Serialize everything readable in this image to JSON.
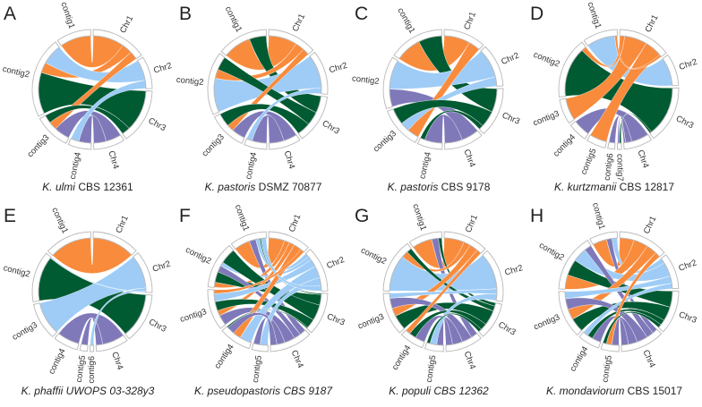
{
  "colors": {
    "Chr1": "#F98B3C",
    "Chr2": "#9ECCF6",
    "Chr3": "#005A32",
    "Chr4": "#7F79BA",
    "ring": "#B8B8B8"
  },
  "chromosomes": [
    "Chr1",
    "Chr2",
    "Chr3",
    "Chr4"
  ],
  "panels": [
    {
      "letter": "A",
      "caption_italic": "K. ulmi",
      "caption_plain": " CBS 12361",
      "contigs": [
        "contig1",
        "contig2",
        "contig3",
        "contig4"
      ],
      "links": [
        [
          1,
          1,
          3
        ],
        [
          2,
          3,
          4
        ],
        [
          2,
          1,
          1
        ],
        [
          2,
          2,
          2
        ],
        [
          3,
          4,
          1.5
        ],
        [
          3,
          1,
          0.8
        ],
        [
          3,
          3,
          0.8
        ],
        [
          4,
          4,
          1.2
        ],
        [
          4,
          2,
          0.8
        ]
      ]
    },
    {
      "letter": "B",
      "caption_italic": "K. pastoris",
      "caption_plain": " DSMZ 70877",
      "contigs": [
        "contig1",
        "contig2",
        "contig3",
        "contig4"
      ],
      "links": [
        [
          1,
          1,
          2.5
        ],
        [
          1,
          3,
          1.5
        ],
        [
          2,
          2,
          3
        ],
        [
          2,
          1,
          0.8
        ],
        [
          2,
          3,
          1.2
        ],
        [
          3,
          4,
          1.2
        ],
        [
          3,
          1,
          0.6
        ],
        [
          3,
          3,
          1.2
        ],
        [
          4,
          4,
          1.3
        ],
        [
          4,
          2,
          0.5
        ]
      ]
    },
    {
      "letter": "C",
      "caption_italic": "K. pastoris",
      "caption_plain": " CBS 9178",
      "contigs": [
        "contig1",
        "contig2",
        "contig3",
        "contig4"
      ],
      "links": [
        [
          1,
          1,
          2.2
        ],
        [
          1,
          3,
          2
        ],
        [
          2,
          4,
          1.5
        ],
        [
          2,
          2,
          2.5
        ],
        [
          3,
          1,
          1
        ],
        [
          3,
          2,
          0.8
        ],
        [
          3,
          3,
          1.4
        ],
        [
          4,
          4,
          1.5
        ],
        [
          4,
          3,
          0.4
        ]
      ]
    },
    {
      "letter": "D",
      "caption_italic": "K. kurtzmanii",
      "caption_plain": " CBS 12817",
      "contigs": [
        "contig1",
        "contig2",
        "contig3",
        "contig4",
        "contig5",
        "contig6",
        "contig7"
      ],
      "links": [
        [
          1,
          2,
          2.3
        ],
        [
          2,
          3,
          4
        ],
        [
          2,
          1,
          0.4
        ],
        [
          3,
          1,
          1.8
        ],
        [
          4,
          4,
          1.4
        ],
        [
          5,
          1,
          1.4
        ],
        [
          6,
          4,
          0.5
        ],
        [
          7,
          3,
          0.15
        ],
        [
          7,
          4,
          0.15
        ],
        [
          1,
          1,
          0.2
        ]
      ]
    },
    {
      "letter": "E",
      "caption_italic": "K. phaffii UWOPS 03-328y3",
      "caption_plain": "",
      "contigs": [
        "contig1",
        "contig2",
        "contig3",
        "contig4",
        "contig5",
        "contig6"
      ],
      "links": [
        [
          1,
          1,
          3.8
        ],
        [
          2,
          3,
          4
        ],
        [
          3,
          2,
          3
        ],
        [
          4,
          4,
          2
        ],
        [
          5,
          4,
          0.6
        ],
        [
          6,
          2,
          0.3
        ],
        [
          2,
          2,
          0.1
        ]
      ]
    },
    {
      "letter": "F",
      "caption_italic": "K. pseudopastoris CBS 9187",
      "caption_plain": "",
      "contigs": [
        "contig1",
        "contig2",
        "contig3",
        "contig4",
        "contig5"
      ],
      "links": [
        [
          1,
          1,
          1.2
        ],
        [
          1,
          4,
          0.5
        ],
        [
          1,
          2,
          0.3
        ],
        [
          1,
          3,
          0.1
        ],
        [
          2,
          1,
          0.4
        ],
        [
          2,
          3,
          0.8
        ],
        [
          2,
          4,
          0.5
        ],
        [
          2,
          2,
          0.3
        ],
        [
          2,
          3,
          1.2
        ],
        [
          3,
          4,
          0.8
        ],
        [
          3,
          1,
          0.4
        ],
        [
          3,
          3,
          0.7
        ],
        [
          3,
          2,
          0.6
        ],
        [
          4,
          2,
          0.9
        ],
        [
          4,
          1,
          0.6
        ],
        [
          4,
          4,
          0.6
        ],
        [
          4,
          3,
          0.1
        ],
        [
          5,
          2,
          0.6
        ],
        [
          5,
          4,
          0.5
        ],
        [
          1,
          2,
          0.4
        ],
        [
          3,
          1,
          0.3
        ]
      ]
    },
    {
      "letter": "G",
      "caption_italic": "K. populi CBS 12362",
      "caption_plain": "",
      "contigs": [
        "contig1",
        "contig2",
        "contig3",
        "contig4",
        "contig5"
      ],
      "links": [
        [
          1,
          1,
          1.2
        ],
        [
          1,
          4,
          0.4
        ],
        [
          1,
          3,
          0.2
        ],
        [
          2,
          2,
          2.2
        ],
        [
          2,
          1,
          0.4
        ],
        [
          2,
          3,
          0.3
        ],
        [
          3,
          3,
          0.9
        ],
        [
          3,
          1,
          0.5
        ],
        [
          3,
          4,
          0.6
        ],
        [
          3,
          2,
          0.3
        ],
        [
          4,
          4,
          0.6
        ],
        [
          4,
          3,
          0.4
        ],
        [
          4,
          1,
          0.3
        ],
        [
          5,
          4,
          0.4
        ],
        [
          5,
          2,
          0.4
        ],
        [
          5,
          3,
          0.2
        ]
      ]
    },
    {
      "letter": "H",
      "caption_italic": "K. mondaviorum",
      "caption_plain": " CBS 15017",
      "contigs": [
        "contig1",
        "contig2",
        "contig3",
        "contig4",
        "contig5"
      ],
      "links": [
        [
          1,
          1,
          0.8
        ],
        [
          1,
          4,
          0.3
        ],
        [
          1,
          2,
          0.3
        ],
        [
          2,
          1,
          0.8
        ],
        [
          2,
          3,
          0.9
        ],
        [
          2,
          2,
          0.8
        ],
        [
          2,
          4,
          0.4
        ],
        [
          3,
          3,
          0.8
        ],
        [
          3,
          1,
          0.6
        ],
        [
          3,
          4,
          0.6
        ],
        [
          3,
          2,
          0.4
        ],
        [
          4,
          4,
          0.5
        ],
        [
          4,
          3,
          0.3
        ],
        [
          4,
          2,
          0.3
        ],
        [
          5,
          4,
          0.4
        ],
        [
          5,
          1,
          0.3
        ],
        [
          5,
          3,
          0.2
        ]
      ]
    }
  ]
}
